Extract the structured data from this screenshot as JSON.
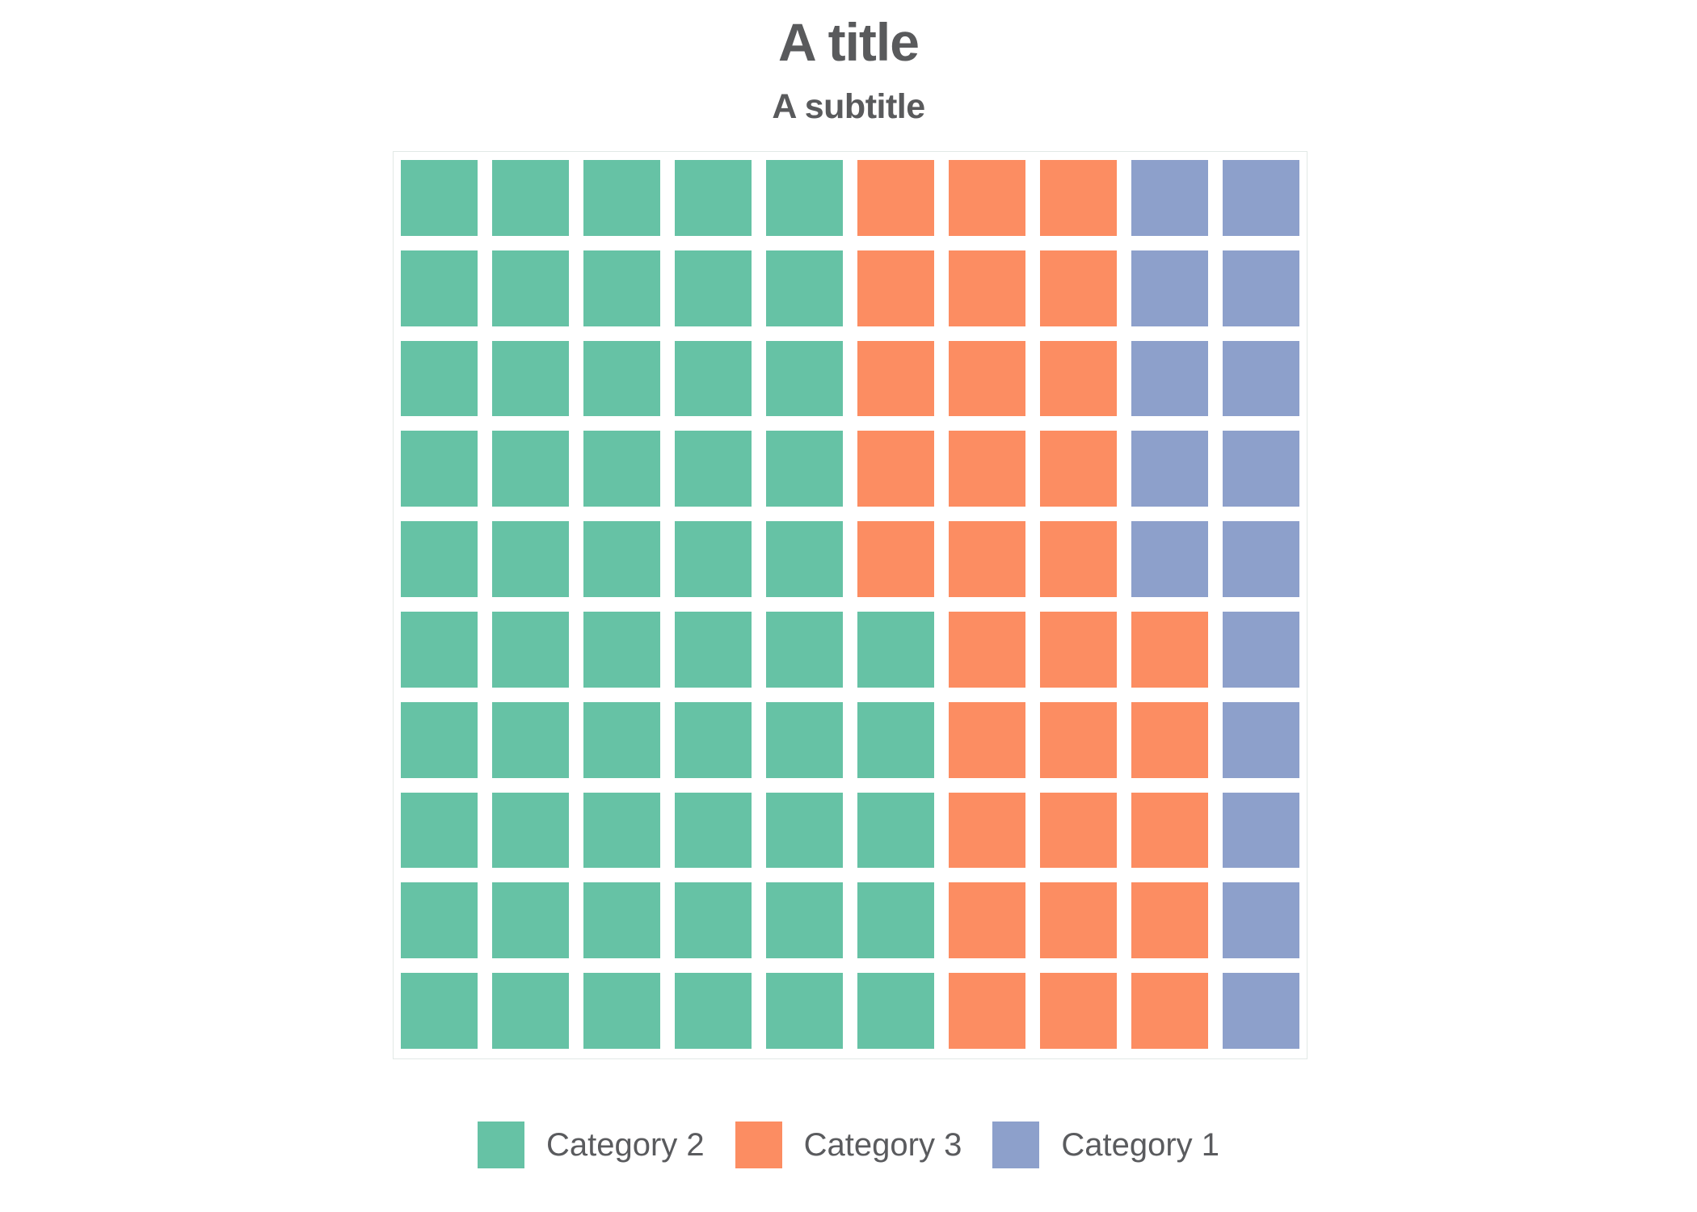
{
  "header": {
    "title": "A title",
    "subtitle": "A subtitle"
  },
  "chart_data": {
    "type": "waffle",
    "title": "A title",
    "subtitle": "A subtitle",
    "grid": {
      "rows": 10,
      "columns": 10,
      "total_cells": 100,
      "fill_order": "column-major-bottom-left"
    },
    "categories": [
      "Category 2",
      "Category 3",
      "Category 1"
    ],
    "series": [
      {
        "name": "Category 2",
        "value": 55,
        "color": "#66c2a5"
      },
      {
        "name": "Category 3",
        "value": 30,
        "color": "#fc8d62"
      },
      {
        "name": "Category 1",
        "value": 15,
        "color": "#8da0cb"
      }
    ],
    "legend_position": "bottom",
    "grid_lines": false,
    "axes": false
  },
  "legend": {
    "items": [
      {
        "label": "Category 2",
        "color": "#66c2a5"
      },
      {
        "label": "Category 3",
        "color": "#fc8d62"
      },
      {
        "label": "Category 1",
        "color": "#8da0cb"
      }
    ]
  },
  "colors": {
    "background": "#ffffff",
    "title_text": "#595a5c",
    "legend_text": "#5a5b5e",
    "panel_border": "#e2e9e6",
    "cell_gap": "#ffffff"
  }
}
